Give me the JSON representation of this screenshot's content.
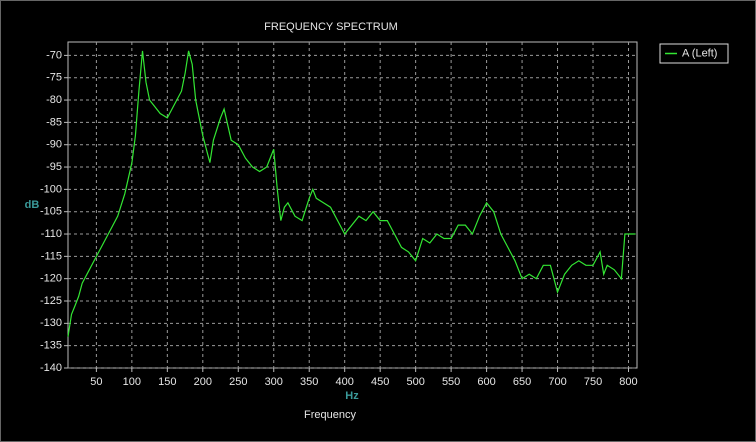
{
  "chart_data": {
    "type": "line",
    "title": "FREQUENCY SPECTRUM",
    "x_label": "Hz",
    "x_title": "Frequency",
    "y_label": "dB",
    "xlim": [
      10,
      812
    ],
    "ylim": [
      -140,
      -67
    ],
    "xticks": [
      50,
      100,
      150,
      200,
      250,
      300,
      350,
      400,
      450,
      500,
      550,
      600,
      650,
      700,
      750,
      800
    ],
    "yticks": [
      -70,
      -75,
      -80,
      -85,
      -90,
      -95,
      -100,
      -105,
      -110,
      -115,
      -120,
      -125,
      -130,
      -135,
      -140
    ],
    "grid": true,
    "legend": "top-right",
    "x": [
      10,
      15,
      20,
      25,
      30,
      40,
      50,
      60,
      70,
      80,
      90,
      100,
      105,
      110,
      115,
      120,
      125,
      130,
      140,
      150,
      160,
      170,
      175,
      180,
      185,
      190,
      200,
      210,
      215,
      225,
      230,
      240,
      250,
      260,
      270,
      280,
      290,
      295,
      300,
      305,
      310,
      315,
      320,
      330,
      340,
      350,
      355,
      360,
      370,
      380,
      390,
      400,
      410,
      420,
      430,
      440,
      450,
      460,
      470,
      480,
      490,
      500,
      510,
      520,
      530,
      540,
      550,
      560,
      570,
      580,
      590,
      600,
      610,
      620,
      630,
      640,
      650,
      660,
      670,
      680,
      690,
      700,
      710,
      720,
      730,
      740,
      750,
      760,
      765,
      770,
      780,
      790,
      795,
      800,
      810
    ],
    "series": [
      {
        "name": "A (Left)",
        "color": "#33e633",
        "values": [
          -133,
          -128,
          -126,
          -124,
          -121,
          -118,
          -115,
          -112,
          -109,
          -106,
          -101,
          -94,
          -88,
          -78,
          -69,
          -76,
          -80,
          -81,
          -83,
          -84,
          -81,
          -78,
          -74,
          -69,
          -72,
          -80,
          -88,
          -94,
          -89,
          -84,
          -82,
          -89,
          -90,
          -93,
          -95,
          -96,
          -95,
          -93,
          -91,
          -100,
          -107,
          -104,
          -103,
          -106,
          -107,
          -102,
          -100,
          -102,
          -103,
          -104,
          -107,
          -110,
          -108,
          -106,
          -107,
          -105,
          -107,
          -107,
          -110,
          -113,
          -114,
          -116,
          -111,
          -112,
          -110,
          -111,
          -111,
          -108,
          -108,
          -110,
          -106,
          -103,
          -105,
          -110,
          -113,
          -116,
          -120,
          -119,
          -120,
          -117,
          -117,
          -123,
          -119,
          -117,
          -116,
          -117,
          -117,
          -114,
          -119,
          -117,
          -118,
          -120,
          -110,
          -110,
          -110
        ]
      }
    ]
  }
}
